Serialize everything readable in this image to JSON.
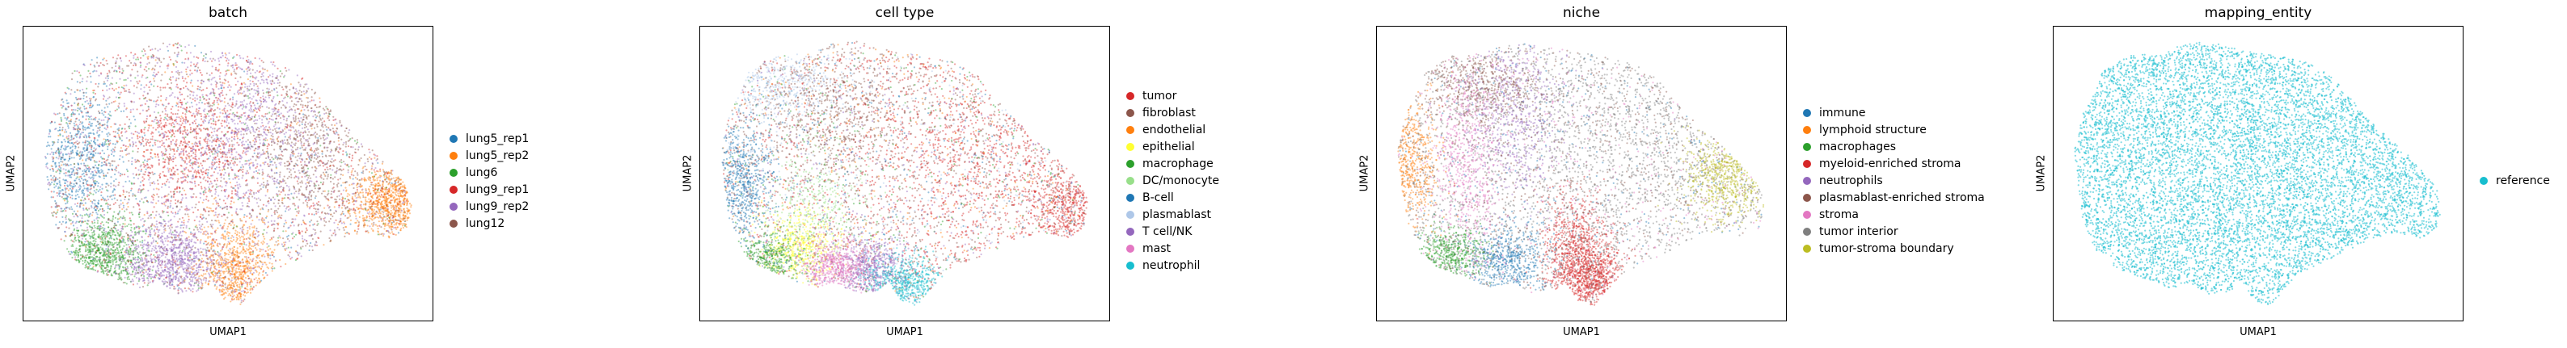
{
  "chart_data": [
    {
      "type": "scatter",
      "title": "batch",
      "xlabel": "UMAP1",
      "ylabel": "UMAP2",
      "legend_position": "right",
      "series": [
        {
          "name": "lung5_rep1",
          "color": "#1f77b4"
        },
        {
          "name": "lung5_rep2",
          "color": "#ff7f0e"
        },
        {
          "name": "lung6",
          "color": "#2ca02c"
        },
        {
          "name": "lung9_rep1",
          "color": "#d62728"
        },
        {
          "name": "lung9_rep2",
          "color": "#9467bd"
        },
        {
          "name": "lung12",
          "color": "#8c564b"
        }
      ]
    },
    {
      "type": "scatter",
      "title": "cell type",
      "xlabel": "UMAP1",
      "ylabel": "UMAP2",
      "legend_position": "right",
      "series": [
        {
          "name": "tumor",
          "color": "#d62728"
        },
        {
          "name": "fibroblast",
          "color": "#8c564b"
        },
        {
          "name": "endothelial",
          "color": "#ff7f0e"
        },
        {
          "name": "epithelial",
          "color": "#ffff33"
        },
        {
          "name": "macrophage",
          "color": "#2ca02c"
        },
        {
          "name": "DC/monocyte",
          "color": "#98df8a"
        },
        {
          "name": "B-cell",
          "color": "#1f77b4"
        },
        {
          "name": "plasmablast",
          "color": "#aec7e8"
        },
        {
          "name": "T cell/NK",
          "color": "#9467bd"
        },
        {
          "name": "mast",
          "color": "#e377c2"
        },
        {
          "name": "neutrophil",
          "color": "#17becf"
        }
      ]
    },
    {
      "type": "scatter",
      "title": "niche",
      "xlabel": "UMAP1",
      "ylabel": "UMAP2",
      "legend_position": "right",
      "series": [
        {
          "name": "immune",
          "color": "#1f77b4"
        },
        {
          "name": "lymphoid structure",
          "color": "#ff7f0e"
        },
        {
          "name": "macrophages",
          "color": "#2ca02c"
        },
        {
          "name": "myeloid-enriched stroma",
          "color": "#d62728"
        },
        {
          "name": "neutrophils",
          "color": "#9467bd"
        },
        {
          "name": "plasmablast-enriched stroma",
          "color": "#8c564b"
        },
        {
          "name": "stroma",
          "color": "#e377c2"
        },
        {
          "name": "tumor interior",
          "color": "#7f7f7f"
        },
        {
          "name": "tumor-stroma boundary",
          "color": "#bcbd22"
        }
      ]
    },
    {
      "type": "scatter",
      "title": "mapping_entity",
      "xlabel": "UMAP1",
      "ylabel": "UMAP2",
      "legend_position": "right",
      "series": [
        {
          "name": "reference",
          "color": "#17becf"
        }
      ]
    }
  ]
}
